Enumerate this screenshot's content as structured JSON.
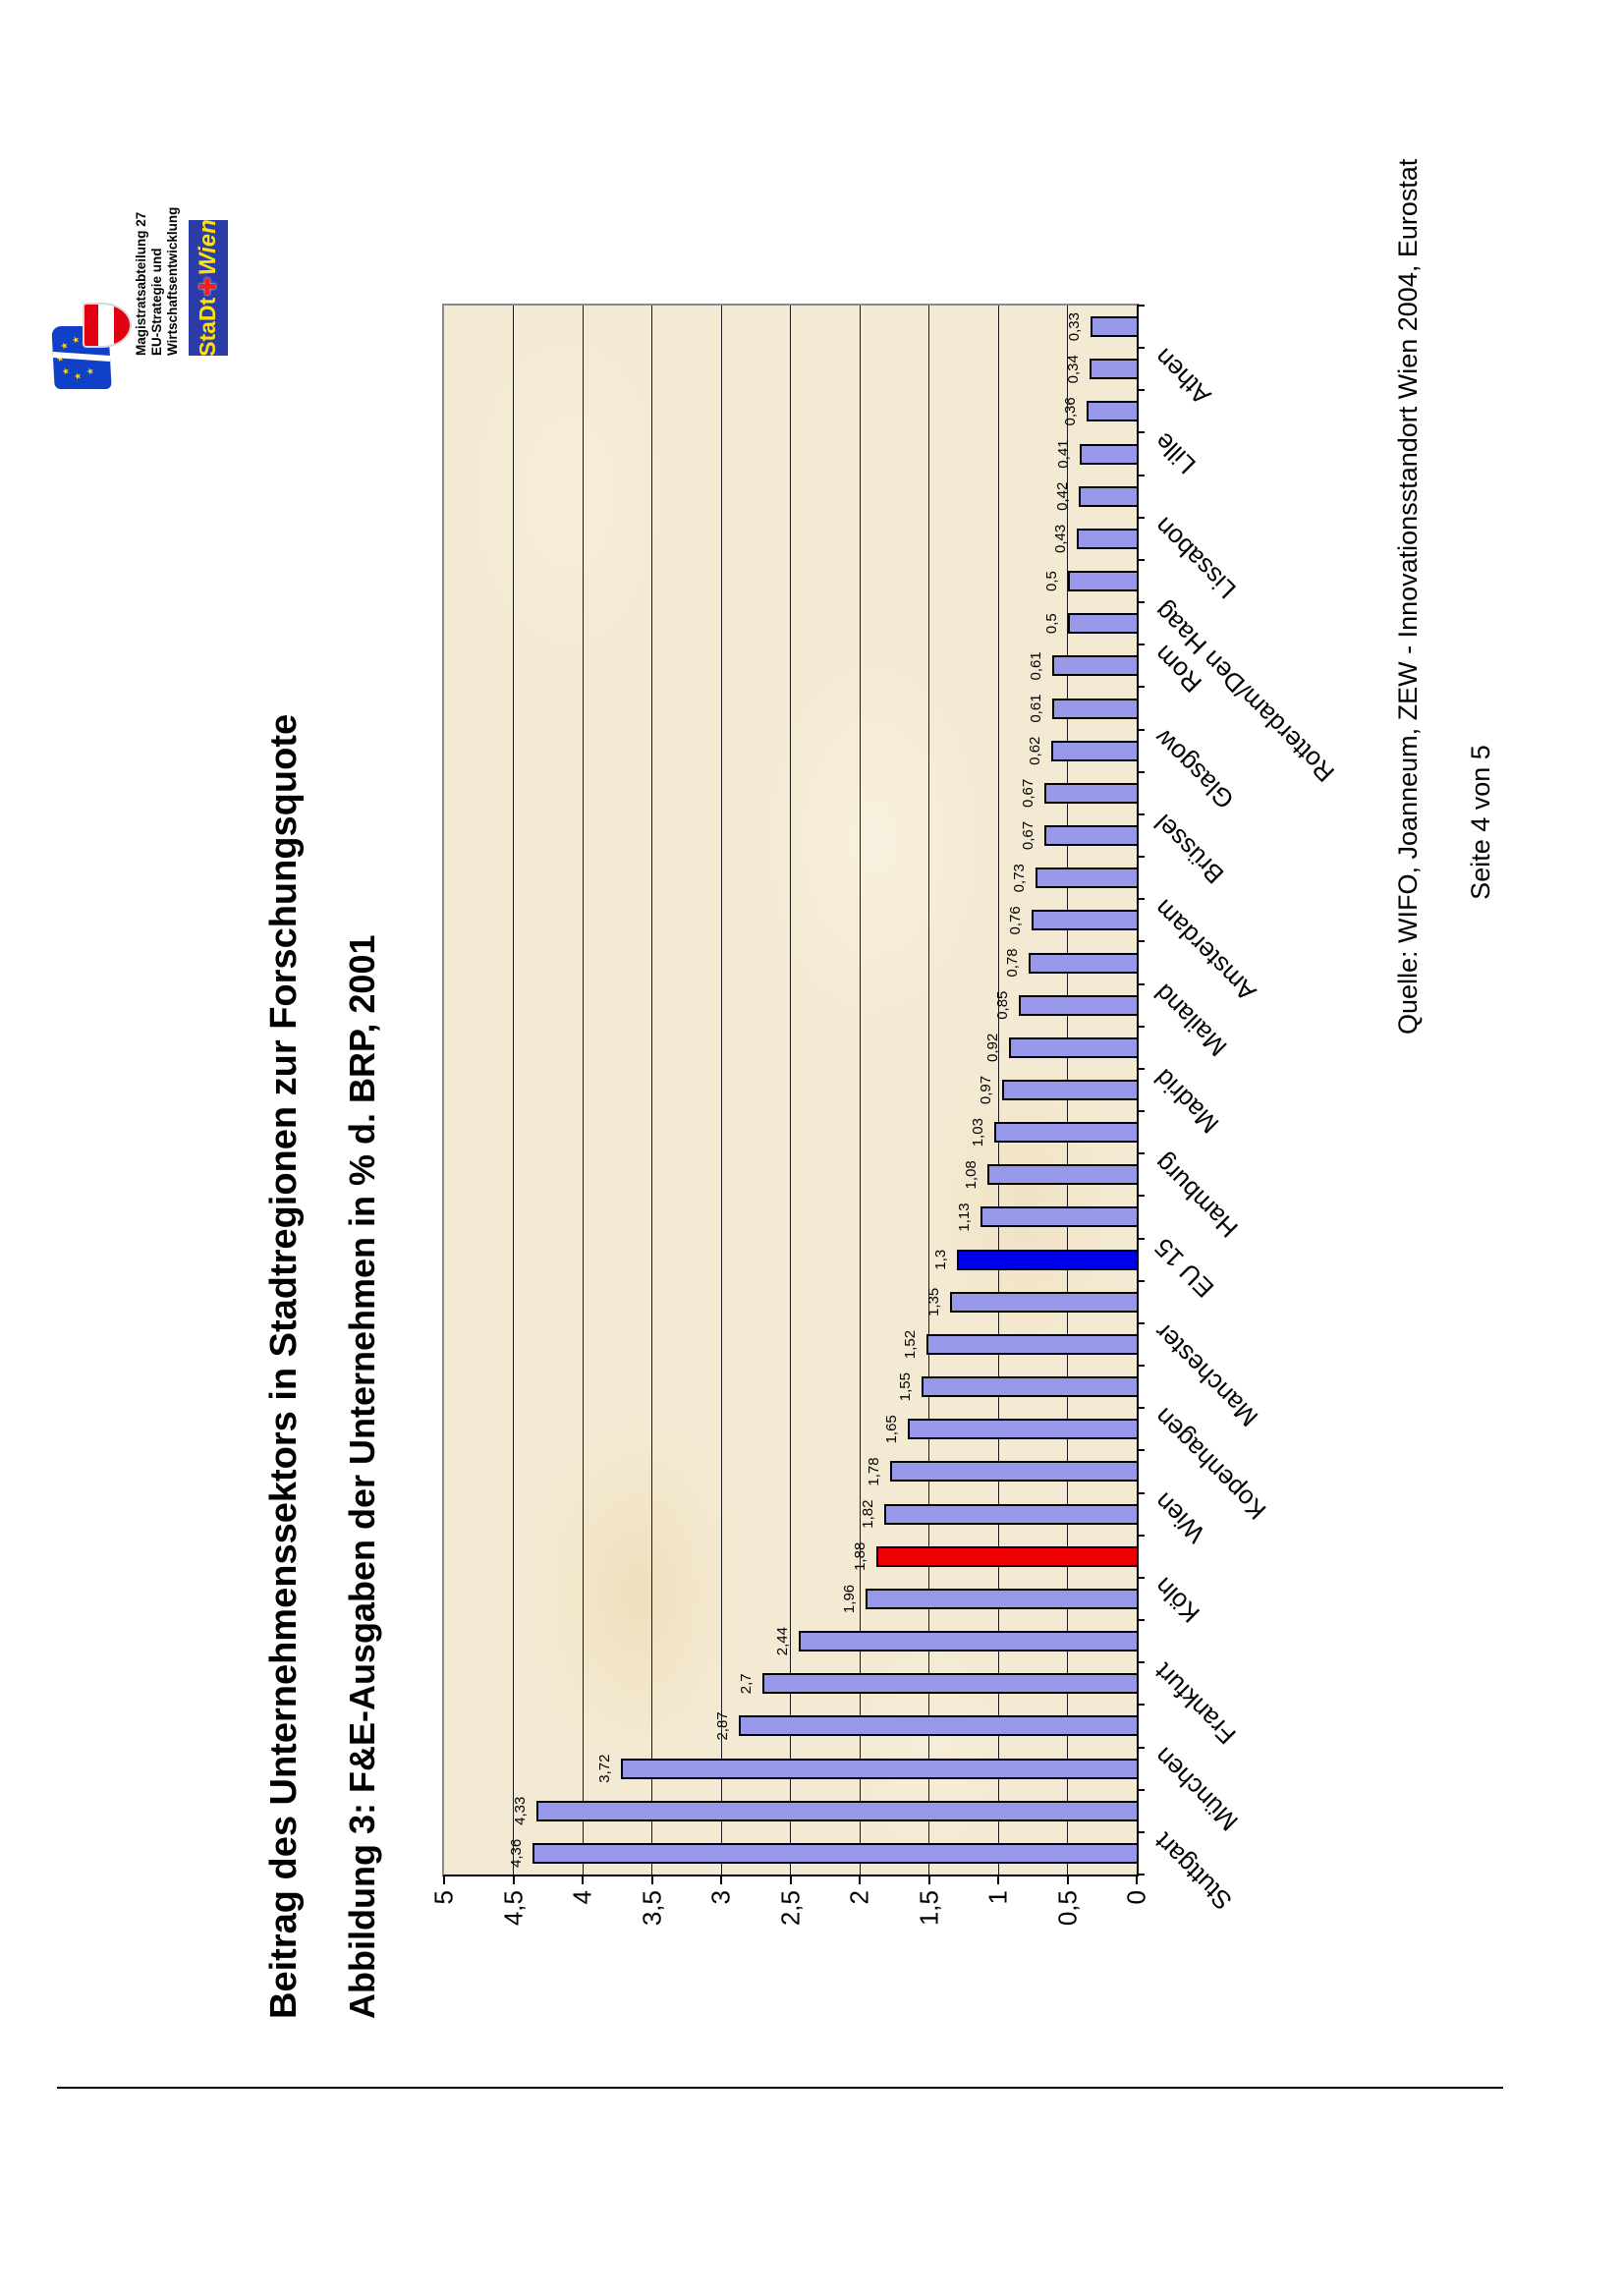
{
  "header": {
    "title_line1": "Beitrag des Unternehmenssektors in Stadtregionen zur Forschungsquote",
    "title_line2": "Abbildung 3: F&E-Ausgaben der Unternehmen in % d. BRP, 2001"
  },
  "logo": {
    "dept_lines": [
      "Magistratsabteilung 27",
      "EU-Strategie und",
      "Wirtschaftsentwicklung"
    ],
    "city_brand": {
      "part1": "StaDt",
      "cross": "✚",
      "part2": "Wien"
    }
  },
  "source_note": "Quelle: WIFO, Joanneum, ZEW - Innovationsstandort Wien 2004, Eurostat",
  "page_label": "Seite 4 von 5",
  "chart_data": {
    "type": "bar",
    "title": "F&E-Ausgaben der Unternehmen in % d. BRP, 2001",
    "xlabel": "",
    "ylabel": "",
    "ylim": [
      0,
      5
    ],
    "ytick_step": 0.5,
    "ytick_labels": [
      "0",
      "0,5",
      "1",
      "1,5",
      "2",
      "2,5",
      "3",
      "3,5",
      "4",
      "4,5",
      "5"
    ],
    "grid": "horizontal, every 0.5",
    "legend": "none",
    "category_label_note": "only every second bar carries a city label, labels rotated 45 degrees",
    "highlight_colors": {
      "default": "#9898ea",
      "eu15_blue": "#0000e6",
      "wien_red": "#ee0000"
    },
    "bars": [
      {
        "value": 4.36,
        "display": "4,36",
        "category": "Stuttgart"
      },
      {
        "value": 4.33,
        "display": "4,33"
      },
      {
        "value": 3.72,
        "display": "3,72",
        "category": "München"
      },
      {
        "value": 2.87,
        "display": "2,87"
      },
      {
        "value": 2.7,
        "display": "2,7",
        "category": "Frankfurt"
      },
      {
        "value": 2.44,
        "display": "2,44"
      },
      {
        "value": 1.96,
        "display": "1,96",
        "category": "Köln"
      },
      {
        "value": 1.88,
        "display": "1,88",
        "highlight": "red"
      },
      {
        "value": 1.82,
        "display": "1,82",
        "category": "Wien"
      },
      {
        "value": 1.78,
        "display": "1,78"
      },
      {
        "value": 1.65,
        "display": "1,65",
        "category": "Kopenhagen"
      },
      {
        "value": 1.55,
        "display": "1,55"
      },
      {
        "value": 1.52,
        "display": "1,52",
        "category": "Manchester"
      },
      {
        "value": 1.35,
        "display": "1,35"
      },
      {
        "value": 1.3,
        "display": "1,3",
        "category": "EU 15",
        "highlight": "blue"
      },
      {
        "value": 1.13,
        "display": "1,13"
      },
      {
        "value": 1.08,
        "display": "1,08",
        "category": "Hamburg"
      },
      {
        "value": 1.03,
        "display": "1,03"
      },
      {
        "value": 0.97,
        "display": "0,97",
        "category": "Madrid"
      },
      {
        "value": 0.92,
        "display": "0,92"
      },
      {
        "value": 0.85,
        "display": "0,85",
        "category": "Mailand"
      },
      {
        "value": 0.78,
        "display": "0,78"
      },
      {
        "value": 0.76,
        "display": "0,76",
        "category": "Amsterdam"
      },
      {
        "value": 0.73,
        "display": "0,73"
      },
      {
        "value": 0.67,
        "display": "0,67",
        "category": "Brüssel"
      },
      {
        "value": 0.67,
        "display": "0,67"
      },
      {
        "value": 0.62,
        "display": "0,62",
        "category": "Glasgow"
      },
      {
        "value": 0.61,
        "display": "0,61"
      },
      {
        "value": 0.61,
        "display": "0,61",
        "category": "Rom"
      },
      {
        "value": 0.5,
        "display": "0,5",
        "category": "Rotterdam/Den Haag"
      },
      {
        "value": 0.5,
        "display": "0,5"
      },
      {
        "value": 0.43,
        "display": "0,43",
        "category": "Lissabon"
      },
      {
        "value": 0.42,
        "display": "0,42"
      },
      {
        "value": 0.41,
        "display": "0,41",
        "category": "Lille"
      },
      {
        "value": 0.36,
        "display": "0,36"
      },
      {
        "value": 0.34,
        "display": "0,34",
        "category": "Athen"
      },
      {
        "value": 0.33,
        "display": "0,33"
      }
    ]
  }
}
